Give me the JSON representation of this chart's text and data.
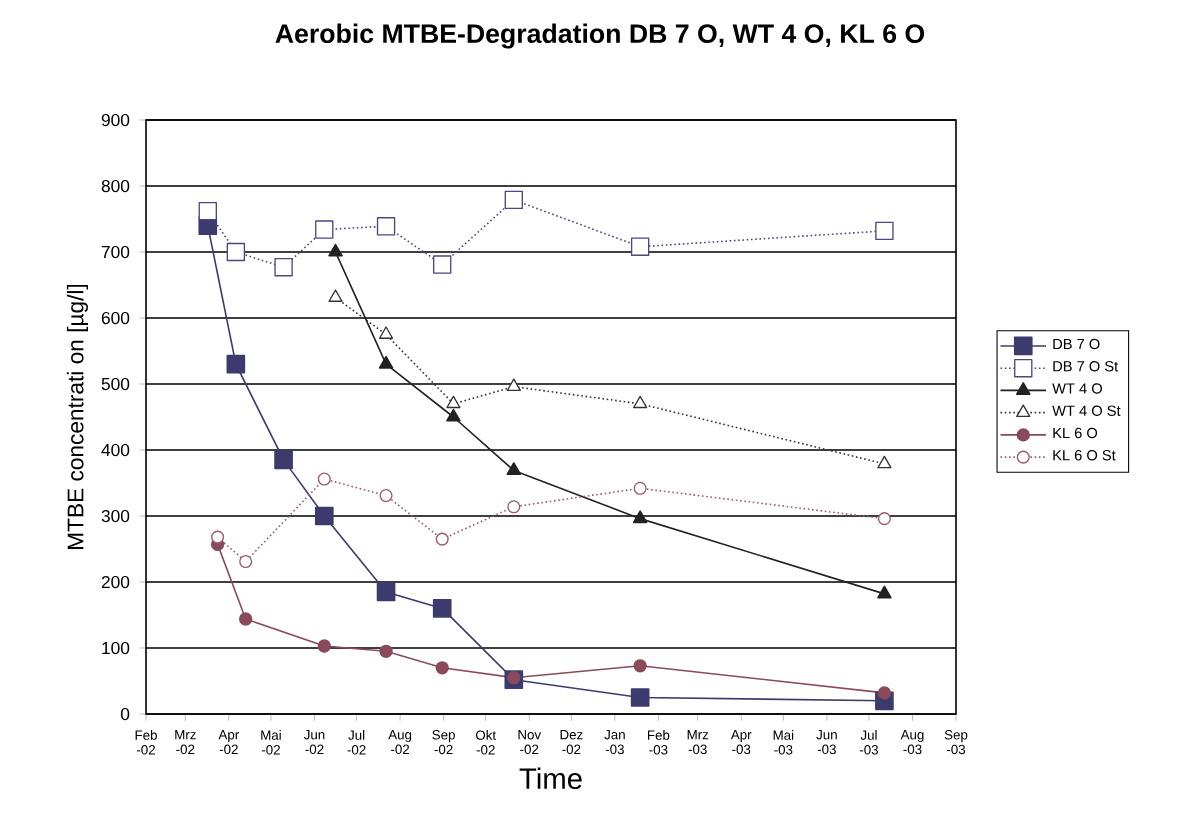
{
  "chart_data": {
    "type": "line",
    "title": "Aerobic MTBE-Degradation DB 7 O, WT 4 O, KL 6 O",
    "xlabel": "Time",
    "ylabel": "MTBE concentrati on [µg/l]",
    "xlim": [
      "2002-02-01",
      "2003-09-01"
    ],
    "xticks": [
      {
        "value": "2002-02-01",
        "label": "Feb -02"
      },
      {
        "value": "2002-03-01",
        "label": "Mrz -02"
      },
      {
        "value": "2002-04-01",
        "label": "Apr -02"
      },
      {
        "value": "2002-05-01",
        "label": "Mai -02"
      },
      {
        "value": "2002-06-01",
        "label": "Jun -02"
      },
      {
        "value": "2002-07-01",
        "label": "Jul -02"
      },
      {
        "value": "2002-08-01",
        "label": "Aug -02"
      },
      {
        "value": "2002-09-01",
        "label": "Sep -02"
      },
      {
        "value": "2002-10-01",
        "label": "Okt -02"
      },
      {
        "value": "2002-11-01",
        "label": "Nov -02"
      },
      {
        "value": "2002-12-01",
        "label": "Dez -02"
      },
      {
        "value": "2003-01-01",
        "label": "Jan -03"
      },
      {
        "value": "2003-02-01",
        "label": "Feb -03"
      },
      {
        "value": "2003-03-01",
        "label": "Mrz -03"
      },
      {
        "value": "2003-04-01",
        "label": "Apr -03"
      },
      {
        "value": "2003-05-01",
        "label": "Mai -03"
      },
      {
        "value": "2003-06-01",
        "label": "Jun -03"
      },
      {
        "value": "2003-07-01",
        "label": "Jul -03"
      },
      {
        "value": "2003-08-01",
        "label": "Aug -03"
      },
      {
        "value": "2003-09-01",
        "label": "Sep -03"
      }
    ],
    "ylim": [
      0,
      900
    ],
    "yticks": [
      0,
      100,
      200,
      300,
      400,
      500,
      600,
      700,
      800,
      900
    ],
    "grid": "y",
    "legend": "right",
    "series": [
      {
        "name": "DB 7 O",
        "color": "#3d3b6e",
        "marker": "square",
        "line_style": "solid",
        "x": [
          "2002-03-17",
          "2002-04-06",
          "2002-05-10",
          "2002-06-08",
          "2002-07-22",
          "2002-08-31",
          "2002-10-21",
          "2003-01-19",
          "2003-07-12"
        ],
        "values": [
          740,
          530,
          385,
          300,
          185,
          160,
          52,
          25,
          20
        ]
      },
      {
        "name": "DB 7 O St",
        "color": "#4a4880",
        "marker": "square",
        "line_style": "dotted",
        "x": [
          "2002-03-17",
          "2002-04-06",
          "2002-05-10",
          "2002-06-08",
          "2002-07-22",
          "2002-08-31",
          "2002-10-21",
          "2003-01-19",
          "2003-07-12"
        ],
        "values": [
          762,
          700,
          677,
          734,
          739,
          681,
          779,
          708,
          732
        ]
      },
      {
        "name": "WT 4 O",
        "color": "#222222",
        "marker": "triangle",
        "line_style": "solid",
        "x": [
          "2002-06-16",
          "2002-07-22",
          "2002-09-08",
          "2002-10-21",
          "2003-01-19",
          "2003-07-12"
        ],
        "values": [
          700,
          530,
          450,
          369,
          296,
          182
        ]
      },
      {
        "name": "WT 4 O St",
        "color": "#333333",
        "marker": "triangle",
        "line_style": "dotted",
        "x": [
          "2002-06-16",
          "2002-07-22",
          "2002-09-08",
          "2002-10-21",
          "2003-01-19",
          "2003-07-12"
        ],
        "values": [
          631,
          575,
          470,
          496,
          470,
          379
        ]
      },
      {
        "name": "KL 6 O",
        "color": "#8a4a5c",
        "marker": "circle",
        "line_style": "solid",
        "x": [
          "2002-03-24",
          "2002-04-13",
          "2002-06-08",
          "2002-07-22",
          "2002-08-31",
          "2002-10-21",
          "2003-01-19",
          "2003-07-12"
        ],
        "values": [
          257,
          144,
          103,
          95,
          70,
          55,
          73,
          32
        ]
      },
      {
        "name": "KL 6 O St",
        "color": "#9a5a6c",
        "marker": "circle",
        "line_style": "dotted",
        "x": [
          "2002-03-24",
          "2002-04-13",
          "2002-06-08",
          "2002-07-22",
          "2002-08-31",
          "2002-10-21",
          "2003-01-19",
          "2003-07-12"
        ],
        "values": [
          268,
          231,
          356,
          331,
          265,
          314,
          342,
          296
        ]
      }
    ]
  }
}
